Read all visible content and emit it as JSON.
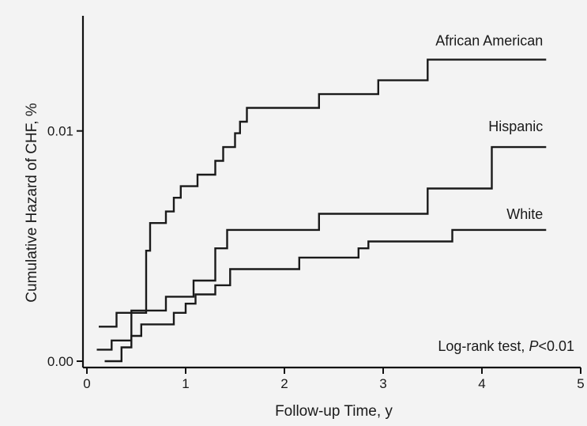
{
  "chart_data": {
    "type": "line",
    "step": true,
    "xlabel": "Follow-up Time, y",
    "ylabel": "Cumulative Hazard of CHF, %",
    "xlim": [
      0,
      5
    ],
    "ylim": [
      0,
      0.015
    ],
    "x_ticks": [
      "0",
      "1",
      "2",
      "3",
      "4",
      "5"
    ],
    "y_ticks": [
      "0.00",
      "0.01"
    ],
    "grid": false,
    "annotation": {
      "prefix": "Log-rank test, ",
      "p_symbol": "P",
      "suffix": "<0.01"
    },
    "series": [
      {
        "name": "African American",
        "points": [
          [
            0.12,
            0.0015
          ],
          [
            0.3,
            0.0015
          ],
          [
            0.3,
            0.0021
          ],
          [
            0.6,
            0.0021
          ],
          [
            0.6,
            0.0048
          ],
          [
            0.64,
            0.0048
          ],
          [
            0.64,
            0.006
          ],
          [
            0.8,
            0.006
          ],
          [
            0.8,
            0.0065
          ],
          [
            0.88,
            0.0065
          ],
          [
            0.88,
            0.0071
          ],
          [
            0.95,
            0.0071
          ],
          [
            0.95,
            0.0076
          ],
          [
            1.12,
            0.0076
          ],
          [
            1.12,
            0.0081
          ],
          [
            1.3,
            0.0081
          ],
          [
            1.3,
            0.0087
          ],
          [
            1.38,
            0.0087
          ],
          [
            1.38,
            0.0093
          ],
          [
            1.5,
            0.0093
          ],
          [
            1.5,
            0.0099
          ],
          [
            1.55,
            0.0099
          ],
          [
            1.55,
            0.0104
          ],
          [
            1.62,
            0.0104
          ],
          [
            1.62,
            0.011
          ],
          [
            2.35,
            0.011
          ],
          [
            2.35,
            0.0116
          ],
          [
            2.95,
            0.0116
          ],
          [
            2.95,
            0.0122
          ],
          [
            3.45,
            0.0122
          ],
          [
            3.45,
            0.0131
          ],
          [
            4.65,
            0.0131
          ]
        ]
      },
      {
        "name": "Hispanic",
        "points": [
          [
            0.1,
            0.0005
          ],
          [
            0.25,
            0.0005
          ],
          [
            0.25,
            0.0009
          ],
          [
            0.45,
            0.0009
          ],
          [
            0.45,
            0.0022
          ],
          [
            0.8,
            0.0022
          ],
          [
            0.8,
            0.0028
          ],
          [
            1.08,
            0.0028
          ],
          [
            1.08,
            0.0035
          ],
          [
            1.3,
            0.0035
          ],
          [
            1.3,
            0.0049
          ],
          [
            1.42,
            0.0049
          ],
          [
            1.42,
            0.0057
          ],
          [
            2.35,
            0.0057
          ],
          [
            2.35,
            0.0064
          ],
          [
            3.45,
            0.0064
          ],
          [
            3.45,
            0.0075
          ],
          [
            4.1,
            0.0075
          ],
          [
            4.1,
            0.0093
          ],
          [
            4.65,
            0.0093
          ]
        ]
      },
      {
        "name": "White",
        "points": [
          [
            0.18,
            0.0
          ],
          [
            0.35,
            0.0
          ],
          [
            0.35,
            0.0006
          ],
          [
            0.45,
            0.0006
          ],
          [
            0.45,
            0.0011
          ],
          [
            0.55,
            0.0011
          ],
          [
            0.55,
            0.0016
          ],
          [
            0.88,
            0.0016
          ],
          [
            0.88,
            0.0021
          ],
          [
            1.0,
            0.0021
          ],
          [
            1.0,
            0.0025
          ],
          [
            1.1,
            0.0025
          ],
          [
            1.1,
            0.0029
          ],
          [
            1.3,
            0.0029
          ],
          [
            1.3,
            0.0033
          ],
          [
            1.45,
            0.0033
          ],
          [
            1.45,
            0.004
          ],
          [
            2.15,
            0.004
          ],
          [
            2.15,
            0.0045
          ],
          [
            2.75,
            0.0045
          ],
          [
            2.75,
            0.0049
          ],
          [
            2.85,
            0.0049
          ],
          [
            2.85,
            0.0052
          ],
          [
            3.7,
            0.0052
          ],
          [
            3.7,
            0.0057
          ],
          [
            4.65,
            0.0057
          ]
        ]
      }
    ]
  }
}
